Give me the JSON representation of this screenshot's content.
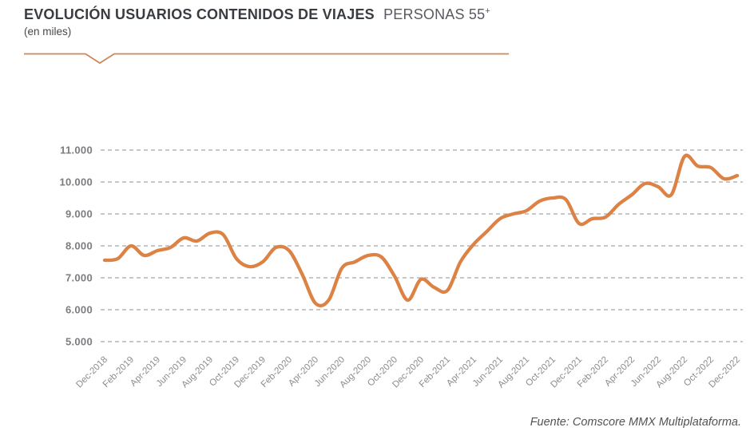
{
  "header": {
    "title": "EVOLUCIÓN USUARIOS CONTENIDOS DE VIAJES",
    "title_suffix": "PERSONAS 55",
    "title_suffix_sup": "+",
    "subtitle": "(en miles)"
  },
  "footer": {
    "source": "Fuente: Comscore MMX Multiplataforma."
  },
  "colors": {
    "line": "#DC8245",
    "header_rule": "#CF8659",
    "gridline": "#A5A7AA",
    "y_label": "#7A7C7F",
    "x_label": "#8A8C8F"
  },
  "chart_data": {
    "type": "line",
    "title": "EVOLUCIÓN USUARIOS CONTENIDOS DE VIAJES PERSONAS 55+ (en miles)",
    "xlabel": "",
    "ylabel": "",
    "ylim": [
      5000,
      11000
    ],
    "grid": "dashed-horizontal",
    "legend": "none",
    "y_ticks": [
      {
        "value": 11000,
        "label": "11.000"
      },
      {
        "value": 10000,
        "label": "10.000"
      },
      {
        "value": 9000,
        "label": "9.000"
      },
      {
        "value": 8000,
        "label": "8.000"
      },
      {
        "value": 7000,
        "label": "7.000"
      },
      {
        "value": 6000,
        "label": "6.000"
      },
      {
        "value": 5000,
        "label": "5.000"
      }
    ],
    "x_tick_labels": [
      "Dec-2018",
      "Feb-2019",
      "Apr-2019",
      "Jun-2019",
      "Aug-2019",
      "Oct-2019",
      "Dec-2019",
      "Feb-2020",
      "Apr-2020",
      "Jun-2020",
      "Aug-2020",
      "Oct-2020",
      "Dec-2020",
      "Feb-2021",
      "Apr-2021",
      "Jun-2021",
      "Aug-2021",
      "Oct-2021",
      "Dec-2021",
      "Feb-2022",
      "Apr-2022",
      "Jun-2022",
      "Aug-2022",
      "Oct-2022",
      "Dec-2022"
    ],
    "categories": [
      "Dec-2018",
      "Jan-2019",
      "Feb-2019",
      "Mar-2019",
      "Apr-2019",
      "May-2019",
      "Jun-2019",
      "Jul-2019",
      "Aug-2019",
      "Sep-2019",
      "Oct-2019",
      "Nov-2019",
      "Dec-2019",
      "Jan-2020",
      "Feb-2020",
      "Mar-2020",
      "Apr-2020",
      "May-2020",
      "Jun-2020",
      "Jul-2020",
      "Aug-2020",
      "Sep-2020",
      "Oct-2020",
      "Nov-2020",
      "Dec-2020",
      "Jan-2021",
      "Feb-2021",
      "Mar-2021",
      "Apr-2021",
      "May-2021",
      "Jun-2021",
      "Jul-2021",
      "Aug-2021",
      "Sep-2021",
      "Oct-2021",
      "Nov-2021",
      "Dec-2021",
      "Jan-2022",
      "Feb-2022",
      "Mar-2022",
      "Apr-2022",
      "May-2022",
      "Jun-2022",
      "Jul-2022",
      "Aug-2022",
      "Sep-2022",
      "Oct-2022",
      "Nov-2022",
      "Dec-2022"
    ],
    "series": [
      {
        "name": "Usuarios contenidos de viajes 55+ (miles)",
        "values": [
          7550,
          7600,
          8000,
          7700,
          7850,
          7950,
          8250,
          8150,
          8400,
          8350,
          7600,
          7350,
          7500,
          7950,
          7850,
          7100,
          6200,
          6300,
          7300,
          7500,
          7700,
          7650,
          7050,
          6300,
          6950,
          6700,
          6600,
          7500,
          8050,
          8450,
          8850,
          9000,
          9100,
          9400,
          9500,
          9450,
          8700,
          8850,
          8900,
          9300,
          9600,
          9950,
          9850,
          9600,
          10800,
          10500,
          10450,
          10100,
          10200
        ]
      }
    ]
  }
}
